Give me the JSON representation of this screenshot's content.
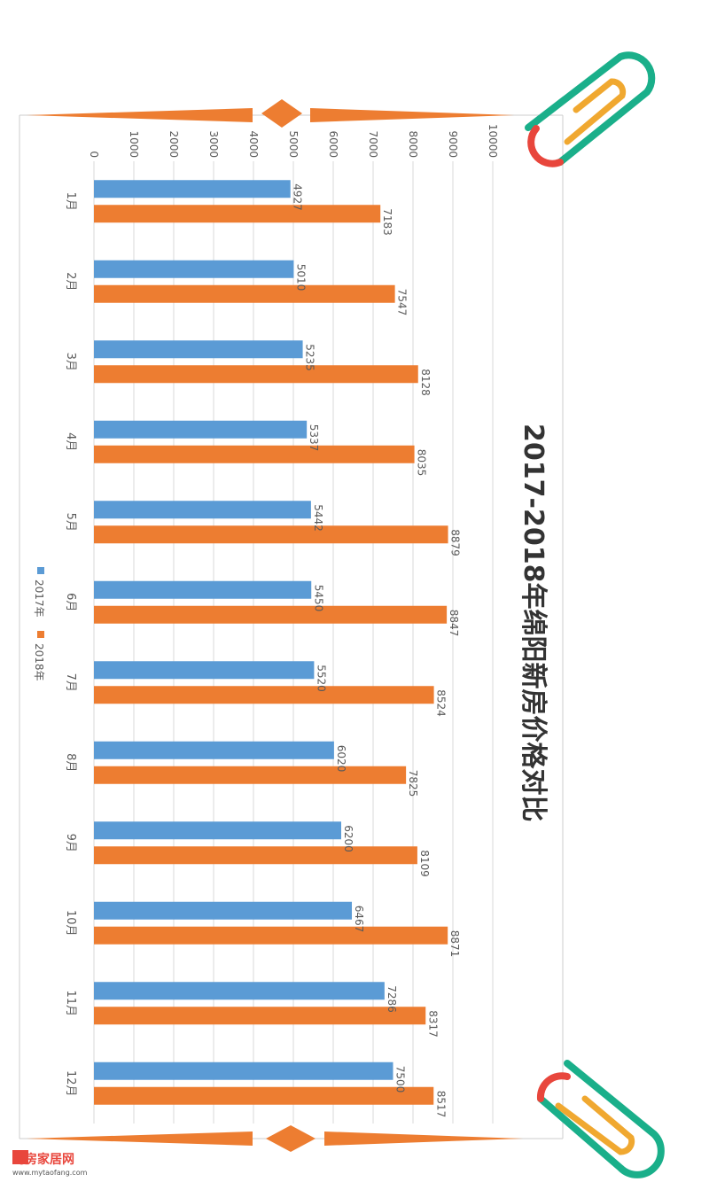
{
  "chart_data": {
    "type": "bar",
    "orientation": "rotated",
    "title": "2017-2018年绵阳新房价格对比",
    "categories": [
      "1月",
      "2月",
      "3月",
      "4月",
      "5月",
      "6月",
      "7月",
      "8月",
      "9月",
      "10月",
      "11月",
      "12月"
    ],
    "series": [
      {
        "name": "2017年",
        "color": "#5b9bd5",
        "values": [
          4927,
          5010,
          5235,
          5337,
          5442,
          5450,
          5520,
          6020,
          6200,
          6467,
          7286,
          7500
        ]
      },
      {
        "name": "2018年",
        "color": "#ed7d31",
        "values": [
          7183,
          7547,
          8128,
          8035,
          8879,
          8847,
          8524,
          7825,
          8109,
          8871,
          8317,
          8517
        ]
      }
    ],
    "ylim": [
      0,
      10000
    ],
    "yticks": [
      0,
      1000,
      2000,
      3000,
      4000,
      5000,
      6000,
      7000,
      8000,
      9000,
      10000
    ],
    "grid": true,
    "legend": "left"
  },
  "watermark": {
    "brand": "淘房家居网",
    "url": "www.mytaofang.com"
  }
}
